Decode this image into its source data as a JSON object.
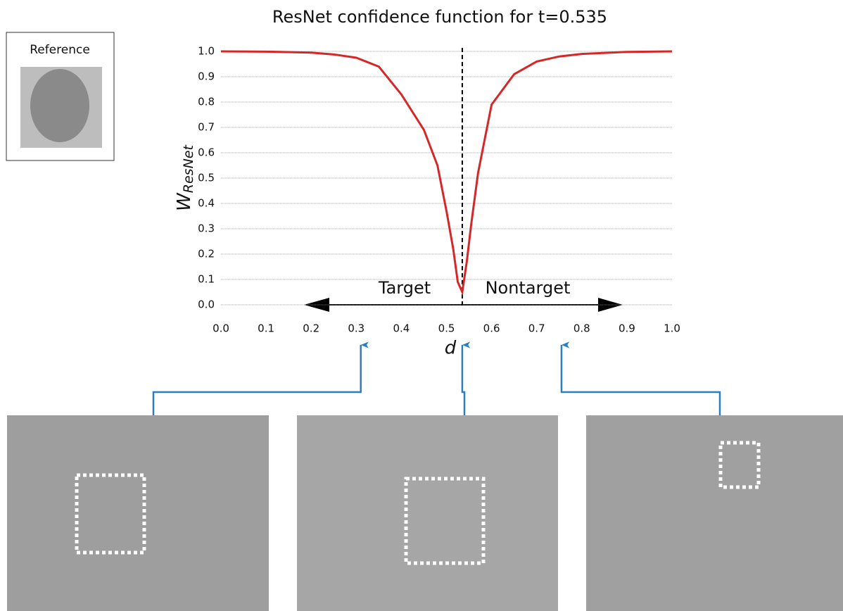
{
  "chart_data": {
    "type": "line",
    "title": "ResNet confidence function for t=0.535",
    "x_label": "d",
    "y_label": "W",
    "y_label_sub": "ResNet",
    "reference_label": "Reference",
    "annotations": [
      "Target",
      "Nontarget"
    ],
    "threshold": 0.535,
    "probe_d": [
      0.31,
      0.535,
      0.755
    ],
    "xlim": [
      0,
      1
    ],
    "ylim": [
      0,
      1
    ],
    "xticks": [
      {
        "value": 0,
        "label": "0.0"
      },
      0.1,
      0.2,
      0.3,
      0.4,
      0.5,
      0.6,
      0.7,
      0.8,
      0.9,
      {
        "value": 1,
        "label": "1.0"
      }
    ],
    "yticks": [
      {
        "value": 0,
        "label": "0.0"
      },
      0.1,
      0.2,
      0.3,
      0.4,
      0.5,
      0.6,
      0.7,
      0.8,
      0.9,
      {
        "value": 1,
        "label": "1.0"
      }
    ],
    "grid": true,
    "series": [
      {
        "color": "#d62728",
        "x": [
          0,
          0.1,
          0.2,
          0.25,
          0.3,
          0.35,
          0.4,
          0.45,
          0.48,
          0.5,
          0.515,
          0.525,
          0.535,
          0.545,
          0.555,
          0.57,
          0.6,
          0.65,
          0.7,
          0.75,
          0.8,
          0.9,
          1.0
        ],
        "values": [
          1.0,
          0.999,
          0.995,
          0.988,
          0.975,
          0.94,
          0.83,
          0.69,
          0.55,
          0.37,
          0.22,
          0.09,
          0.05,
          0.17,
          0.32,
          0.52,
          0.79,
          0.91,
          0.96,
          0.98,
          0.99,
          0.998,
          1.0
        ]
      }
    ]
  }
}
